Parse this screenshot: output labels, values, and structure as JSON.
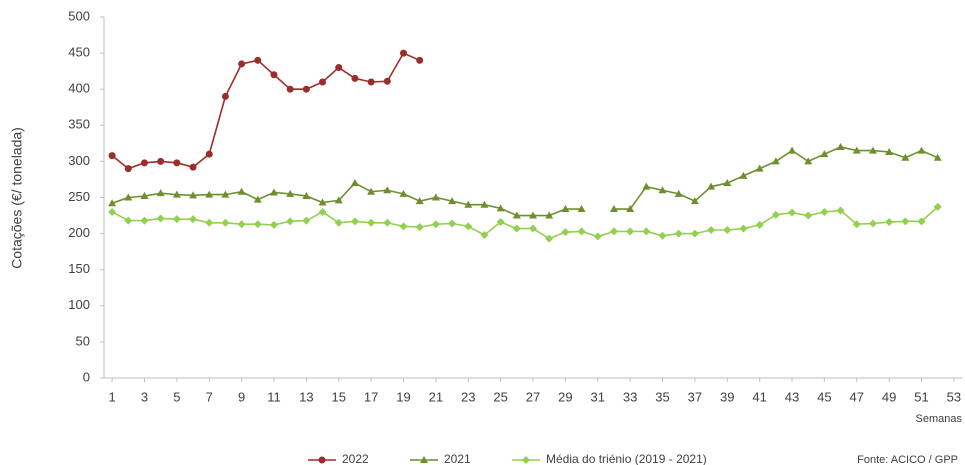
{
  "chart_data": {
    "type": "line",
    "y_label": "Cotações (€/ tonelada)",
    "x_label": "Semanas",
    "source": "Fonte: ACICO / GPP",
    "x": [
      1,
      2,
      3,
      4,
      5,
      6,
      7,
      8,
      9,
      10,
      11,
      12,
      13,
      14,
      15,
      16,
      17,
      18,
      19,
      20,
      21,
      22,
      23,
      24,
      25,
      26,
      27,
      28,
      29,
      30,
      31,
      32,
      33,
      34,
      35,
      36,
      37,
      38,
      39,
      40,
      41,
      42,
      43,
      44,
      45,
      46,
      47,
      48,
      49,
      50,
      51,
      52
    ],
    "xlim": [
      0.5,
      53.5
    ],
    "xticks": [
      1,
      3,
      5,
      7,
      9,
      11,
      13,
      15,
      17,
      19,
      21,
      23,
      25,
      27,
      29,
      31,
      33,
      35,
      37,
      39,
      41,
      43,
      45,
      47,
      49,
      51,
      53
    ],
    "ylim": [
      0,
      500
    ],
    "yticks": [
      0,
      50,
      100,
      150,
      200,
      250,
      300,
      350,
      400,
      450,
      500
    ],
    "grid": false,
    "legend": "bottom",
    "series": [
      {
        "name": "2022",
        "color": "#9b2d2d",
        "marker": "circle",
        "values": [
          308,
          290,
          298,
          300,
          298,
          292,
          310,
          390,
          435,
          440,
          420,
          400,
          400,
          410,
          430,
          415,
          410,
          411,
          450,
          440,
          null,
          null,
          null,
          null,
          null,
          null,
          null,
          null,
          null,
          null,
          null,
          null,
          null,
          null,
          null,
          null,
          null,
          null,
          null,
          null,
          null,
          null,
          null,
          null,
          null,
          null,
          null,
          null,
          null,
          null,
          null,
          null
        ]
      },
      {
        "name": "2021",
        "color": "#6f8f2f",
        "marker": "triangle",
        "values": [
          242,
          250,
          252,
          256,
          254,
          253,
          254,
          254,
          258,
          247,
          257,
          255,
          252,
          243,
          246,
          270,
          258,
          260,
          255,
          245,
          250,
          245,
          240,
          240,
          235,
          225,
          225,
          225,
          234,
          234,
          null,
          234,
          234,
          265,
          260,
          255,
          245,
          265,
          270,
          280,
          290,
          300,
          315,
          300,
          310,
          320,
          315,
          315,
          313,
          305,
          315,
          305
        ]
      },
      {
        "name": "Média do triénio (2019 - 2021)",
        "color": "#92d050",
        "marker": "diamond",
        "values": [
          230,
          218,
          218,
          221,
          220,
          220,
          215,
          215,
          213,
          213,
          212,
          217,
          218,
          230,
          215,
          217,
          215,
          215,
          210,
          209,
          213,
          214,
          210,
          198,
          216,
          207,
          207,
          193,
          202,
          203,
          196,
          203,
          203,
          203,
          197,
          200,
          200,
          205,
          205,
          207,
          212,
          226,
          229,
          225,
          230,
          232,
          213,
          214,
          216,
          217,
          217,
          237
        ]
      }
    ]
  }
}
